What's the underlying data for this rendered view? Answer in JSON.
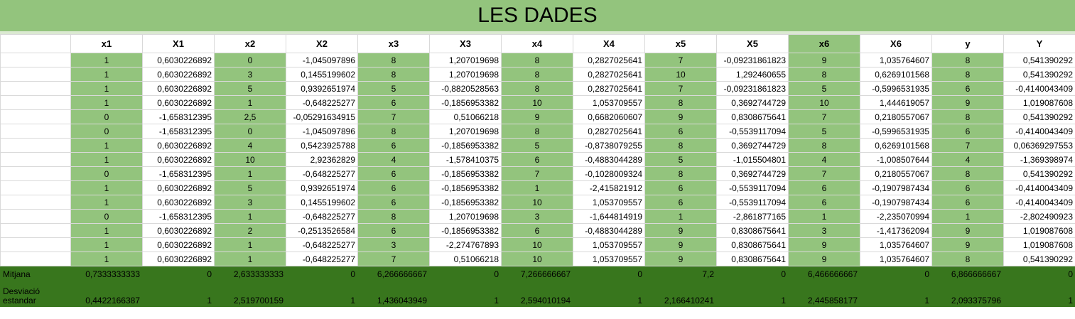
{
  "title": "LES DADES",
  "headers": [
    "x1",
    "X1",
    "x2",
    "X2",
    "x3",
    "X3",
    "x4",
    "X4",
    "x5",
    "X5",
    "x6",
    "X6",
    "y",
    "Y"
  ],
  "rows": [
    [
      "1",
      "0,6030226892",
      "0",
      "-1,045097896",
      "8",
      "1,207019698",
      "8",
      "0,2827025641",
      "7",
      "-0,09231861823",
      "9",
      "1,035764607",
      "8",
      "0,541390292"
    ],
    [
      "1",
      "0,6030226892",
      "3",
      "0,1455199602",
      "8",
      "1,207019698",
      "8",
      "0,2827025641",
      "10",
      "1,292460655",
      "8",
      "0,6269101568",
      "8",
      "0,541390292"
    ],
    [
      "1",
      "0,6030226892",
      "5",
      "0,9392651974",
      "5",
      "-0,8820528563",
      "8",
      "0,2827025641",
      "7",
      "-0,09231861823",
      "5",
      "-0,5996531935",
      "6",
      "-0,4140043409"
    ],
    [
      "1",
      "0,6030226892",
      "1",
      "-0,648225277",
      "6",
      "-0,1856953382",
      "10",
      "1,053709557",
      "8",
      "0,3692744729",
      "10",
      "1,444619057",
      "9",
      "1,019087608"
    ],
    [
      "0",
      "-1,658312395",
      "2,5",
      "-0,05291634915",
      "7",
      "0,51066218",
      "9",
      "0,6682060607",
      "9",
      "0,8308675641",
      "7",
      "0,2180557067",
      "8",
      "0,541390292"
    ],
    [
      "0",
      "-1,658312395",
      "0",
      "-1,045097896",
      "8",
      "1,207019698",
      "8",
      "0,2827025641",
      "6",
      "-0,5539117094",
      "5",
      "-0,5996531935",
      "6",
      "-0,4140043409"
    ],
    [
      "1",
      "0,6030226892",
      "4",
      "0,5423925788",
      "6",
      "-0,1856953382",
      "5",
      "-0,8738079255",
      "8",
      "0,3692744729",
      "8",
      "0,6269101568",
      "7",
      "0,06369297553"
    ],
    [
      "1",
      "0,6030226892",
      "10",
      "2,92362829",
      "4",
      "-1,578410375",
      "6",
      "-0,4883044289",
      "5",
      "-1,015504801",
      "4",
      "-1,008507644",
      "4",
      "-1,369398974"
    ],
    [
      "0",
      "-1,658312395",
      "1",
      "-0,648225277",
      "6",
      "-0,1856953382",
      "7",
      "-0,1028009324",
      "8",
      "0,3692744729",
      "7",
      "0,2180557067",
      "8",
      "0,541390292"
    ],
    [
      "1",
      "0,6030226892",
      "5",
      "0,9392651974",
      "6",
      "-0,1856953382",
      "1",
      "-2,415821912",
      "6",
      "-0,5539117094",
      "6",
      "-0,1907987434",
      "6",
      "-0,4140043409"
    ],
    [
      "1",
      "0,6030226892",
      "3",
      "0,1455199602",
      "6",
      "-0,1856953382",
      "10",
      "1,053709557",
      "6",
      "-0,5539117094",
      "6",
      "-0,1907987434",
      "6",
      "-0,4140043409"
    ],
    [
      "0",
      "-1,658312395",
      "1",
      "-0,648225277",
      "8",
      "1,207019698",
      "3",
      "-1,644814919",
      "1",
      "-2,861877165",
      "1",
      "-2,235070994",
      "1",
      "-2,802490923"
    ],
    [
      "1",
      "0,6030226892",
      "2",
      "-0,2513526584",
      "6",
      "-0,1856953382",
      "6",
      "-0,4883044289",
      "9",
      "0,8308675641",
      "3",
      "-1,417362094",
      "9",
      "1,019087608"
    ],
    [
      "1",
      "0,6030226892",
      "1",
      "-0,648225277",
      "3",
      "-2,274767893",
      "10",
      "1,053709557",
      "9",
      "0,8308675641",
      "9",
      "1,035764607",
      "9",
      "1,019087608"
    ],
    [
      "1",
      "0,6030226892",
      "1",
      "-0,648225277",
      "7",
      "0,51066218",
      "10",
      "1,053709557",
      "9",
      "0,8308675641",
      "9",
      "1,035764607",
      "8",
      "0,541390292"
    ]
  ],
  "mean": {
    "label": "Mitjana",
    "values": [
      "0,7333333333",
      "0",
      "2,633333333",
      "0",
      "6,266666667",
      "0",
      "7,266666667",
      "0",
      "7,2",
      "0",
      "6,466666667",
      "0",
      "6,866666667",
      "0"
    ]
  },
  "std": {
    "label": "Desviació estandar",
    "values": [
      "0,4422166387",
      "1",
      "2,519700159",
      "1",
      "1,436043949",
      "1",
      "2,594010194",
      "1",
      "2,166410241",
      "1",
      "2,445858177",
      "1",
      "2,093375796",
      "1"
    ]
  }
}
